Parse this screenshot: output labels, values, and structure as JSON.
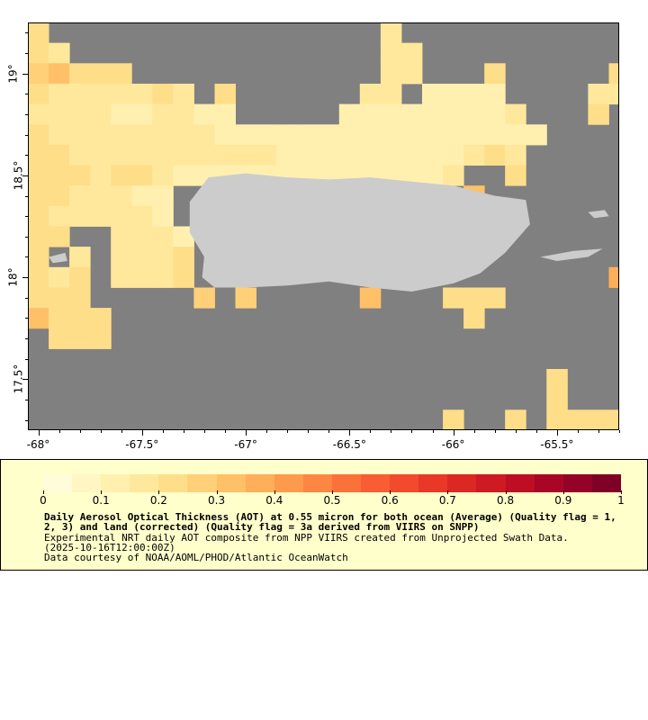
{
  "map": {
    "x_ticks": [
      "-68°",
      "-67.5°",
      "-67°",
      "-66.5°",
      "-66°",
      "-65.5°"
    ],
    "y_ticks": [
      "19°",
      "18.5°",
      "18°",
      "17.5°"
    ],
    "no_data_color": "#808080",
    "land_color": "#cccccc"
  },
  "legend": {
    "labels": [
      "0",
      "0.1",
      "0.2",
      "0.3",
      "0.4",
      "0.5",
      "0.6",
      "0.7",
      "0.8",
      "0.9",
      "1"
    ],
    "title": "Daily Aerosol Optical Thickness (AOT) at 0.55 micron for both ocean (Average) (Quality flag = 1, 2, 3) and land (corrected) (Quality flag = 3a derived from VIIRS on SNPP)",
    "line1": "Experimental NRT daily AOT composite from NPP VIIRS created from Unprojected Swath Data.",
    "line2": "(2025-10-16T12:00:00Z)",
    "line3": "Data courtesy of NOAA/AOML/PHOD/Atlantic OceanWatch",
    "colors": [
      "#fffcd9",
      "#fff6c4",
      "#fff0b0",
      "#ffe89c",
      "#ffde89",
      "#ffd078",
      "#ffc068",
      "#ffae5a",
      "#fe9a4d",
      "#fd8642",
      "#fb713a",
      "#f85d33",
      "#f24a2d",
      "#e93828",
      "#dc2823",
      "#ce1a22",
      "#bd0e24",
      "#a90626",
      "#940227",
      "#7f0026"
    ]
  },
  "chart_data": {
    "type": "heatmap",
    "title": "Daily Aerosol Optical Thickness (AOT) at 0.55 micron",
    "x_range": [
      -68.05,
      -65.2
    ],
    "y_range": [
      17.25,
      19.25
    ],
    "grid_step_deg": 0.1,
    "color_range": [
      0,
      1
    ],
    "cells": [
      [
        -68.0,
        19.2,
        0.22
      ],
      [
        -68.0,
        19.1,
        0.22
      ],
      [
        -67.9,
        19.1,
        0.18
      ],
      [
        -68.0,
        19.0,
        0.28
      ],
      [
        -67.9,
        19.0,
        0.3
      ],
      [
        -67.8,
        19.0,
        0.24
      ],
      [
        -67.7,
        19.0,
        0.22
      ],
      [
        -67.6,
        19.0,
        0.2
      ],
      [
        -68.0,
        18.9,
        0.2
      ],
      [
        -67.9,
        18.9,
        0.18
      ],
      [
        -67.8,
        18.9,
        0.16
      ],
      [
        -67.7,
        18.9,
        0.16
      ],
      [
        -67.6,
        18.9,
        0.15
      ],
      [
        -67.5,
        18.9,
        0.15
      ],
      [
        -67.4,
        18.9,
        0.22
      ],
      [
        -67.3,
        18.9,
        0.18
      ],
      [
        -67.1,
        18.9,
        0.2
      ],
      [
        -68.0,
        18.8,
        0.18
      ],
      [
        -67.9,
        18.8,
        0.16
      ],
      [
        -67.8,
        18.8,
        0.15
      ],
      [
        -67.7,
        18.8,
        0.15
      ],
      [
        -67.6,
        18.8,
        0.14
      ],
      [
        -67.5,
        18.8,
        0.14
      ],
      [
        -67.4,
        18.8,
        0.16
      ],
      [
        -67.3,
        18.8,
        0.16
      ],
      [
        -67.2,
        18.8,
        0.14
      ],
      [
        -67.1,
        18.8,
        0.14
      ],
      [
        -68.0,
        18.7,
        0.2
      ],
      [
        -67.9,
        18.7,
        0.18
      ],
      [
        -67.8,
        18.7,
        0.16
      ],
      [
        -67.7,
        18.7,
        0.18
      ],
      [
        -67.6,
        18.7,
        0.16
      ],
      [
        -67.5,
        18.7,
        0.16
      ],
      [
        -67.4,
        18.7,
        0.16
      ],
      [
        -67.3,
        18.7,
        0.15
      ],
      [
        -67.2,
        18.7,
        0.16
      ],
      [
        -67.1,
        18.7,
        0.14
      ],
      [
        -67.0,
        18.7,
        0.14
      ],
      [
        -66.9,
        18.7,
        0.14
      ],
      [
        -66.8,
        18.7,
        0.14
      ],
      [
        -66.7,
        18.7,
        0.12
      ],
      [
        -66.6,
        18.7,
        0.12
      ],
      [
        -66.5,
        18.7,
        0.12
      ],
      [
        -68.0,
        18.6,
        0.22
      ],
      [
        -67.9,
        18.6,
        0.2
      ],
      [
        -67.8,
        18.6,
        0.18
      ],
      [
        -67.7,
        18.6,
        0.16
      ],
      [
        -67.6,
        18.6,
        0.18
      ],
      [
        -67.5,
        18.6,
        0.18
      ],
      [
        -67.4,
        18.6,
        0.16
      ],
      [
        -67.3,
        18.6,
        0.16
      ],
      [
        -67.2,
        18.6,
        0.18
      ],
      [
        -67.1,
        18.6,
        0.18
      ],
      [
        -67.0,
        18.6,
        0.16
      ],
      [
        -66.9,
        18.6,
        0.15
      ],
      [
        -66.8,
        18.6,
        0.14
      ],
      [
        -66.7,
        18.6,
        0.13
      ],
      [
        -66.6,
        18.6,
        0.13
      ],
      [
        -66.5,
        18.6,
        0.12
      ],
      [
        -66.4,
        18.6,
        0.12
      ],
      [
        -66.3,
        18.6,
        0.13
      ],
      [
        -66.2,
        18.6,
        0.14
      ],
      [
        -68.0,
        18.5,
        0.22
      ],
      [
        -67.9,
        18.5,
        0.2
      ],
      [
        -67.8,
        18.5,
        0.2
      ],
      [
        -67.7,
        18.5,
        0.18
      ],
      [
        -67.6,
        18.5,
        0.2
      ],
      [
        -67.5,
        18.5,
        0.2
      ],
      [
        -67.4,
        18.5,
        0.16
      ],
      [
        -67.3,
        18.5,
        0.14
      ],
      [
        -67.2,
        18.5,
        0.14
      ],
      [
        -67.1,
        18.5,
        0.14
      ],
      [
        -67.0,
        18.5,
        0.13
      ],
      [
        -66.9,
        18.5,
        0.12
      ],
      [
        -66.8,
        18.5,
        0.1
      ],
      [
        -66.7,
        18.5,
        0.1
      ],
      [
        -66.6,
        18.5,
        0.1
      ],
      [
        -66.5,
        18.5,
        0.1
      ],
      [
        -66.4,
        18.5,
        0.1
      ],
      [
        -66.3,
        18.5,
        0.12
      ],
      [
        -66.2,
        18.5,
        0.14
      ],
      [
        -66.1,
        18.5,
        0.14
      ],
      [
        -68.0,
        18.4,
        0.2
      ],
      [
        -67.9,
        18.4,
        0.2
      ],
      [
        -67.8,
        18.4,
        0.18
      ],
      [
        -67.7,
        18.4,
        0.16
      ],
      [
        -67.6,
        18.4,
        0.16
      ],
      [
        -67.5,
        18.4,
        0.14
      ],
      [
        -67.4,
        18.4,
        0.14
      ],
      [
        -68.0,
        18.3,
        0.22
      ],
      [
        -67.9,
        18.3,
        0.18
      ],
      [
        -67.8,
        18.3,
        0.16
      ],
      [
        -67.7,
        18.3,
        0.16
      ],
      [
        -67.6,
        18.3,
        0.16
      ],
      [
        -67.5,
        18.3,
        0.15
      ],
      [
        -67.4,
        18.3,
        0.14
      ],
      [
        -68.0,
        18.2,
        0.2
      ],
      [
        -67.9,
        18.2,
        0.2
      ],
      [
        -67.6,
        18.2,
        0.18
      ],
      [
        -67.5,
        18.2,
        0.18
      ],
      [
        -67.4,
        18.2,
        0.16
      ],
      [
        -67.3,
        18.2,
        0.14
      ],
      [
        -68.0,
        18.1,
        0.2
      ],
      [
        -67.8,
        18.1,
        0.18
      ],
      [
        -67.6,
        18.1,
        0.16
      ],
      [
        -67.5,
        18.1,
        0.18
      ],
      [
        -67.4,
        18.1,
        0.16
      ],
      [
        -67.3,
        18.1,
        0.2
      ],
      [
        -68.0,
        18.0,
        0.2
      ],
      [
        -67.9,
        18.0,
        0.18
      ],
      [
        -67.8,
        18.0,
        0.2
      ],
      [
        -67.6,
        18.0,
        0.18
      ],
      [
        -67.5,
        18.0,
        0.16
      ],
      [
        -67.4,
        18.0,
        0.18
      ],
      [
        -67.3,
        18.0,
        0.2
      ],
      [
        -68.0,
        17.9,
        0.24
      ],
      [
        -67.9,
        17.9,
        0.2
      ],
      [
        -67.8,
        17.9,
        0.22
      ],
      [
        -67.2,
        17.9,
        0.28
      ],
      [
        -67.0,
        17.9,
        0.28
      ],
      [
        -66.4,
        17.9,
        0.3
      ],
      [
        -66.0,
        17.9,
        0.22
      ],
      [
        -65.9,
        17.9,
        0.24
      ],
      [
        -65.8,
        17.9,
        0.24
      ],
      [
        -68.0,
        17.8,
        0.3
      ],
      [
        -67.9,
        17.8,
        0.2
      ],
      [
        -67.8,
        17.8,
        0.22
      ],
      [
        -67.7,
        17.8,
        0.22
      ],
      [
        -65.9,
        17.8,
        0.24
      ],
      [
        -67.9,
        17.7,
        0.22
      ],
      [
        -67.8,
        17.7,
        0.22
      ],
      [
        -67.7,
        17.7,
        0.22
      ],
      [
        -65.5,
        17.5,
        0.24
      ],
      [
        -65.5,
        17.4,
        0.24
      ],
      [
        -66.0,
        17.3,
        0.22
      ],
      [
        -65.7,
        17.3,
        0.22
      ],
      [
        -65.5,
        17.3,
        0.2
      ],
      [
        -65.4,
        17.3,
        0.2
      ],
      [
        -65.3,
        17.3,
        0.2
      ],
      [
        -65.2,
        17.3,
        0.24
      ],
      [
        -66.3,
        19.2,
        0.18
      ],
      [
        -66.3,
        19.1,
        0.18
      ],
      [
        -66.2,
        19.1,
        0.16
      ],
      [
        -66.3,
        19.0,
        0.18
      ],
      [
        -66.2,
        19.0,
        0.16
      ],
      [
        -65.8,
        19.0,
        0.2
      ],
      [
        -65.2,
        19.0,
        0.22
      ],
      [
        -66.4,
        18.9,
        0.16
      ],
      [
        -66.3,
        18.9,
        0.15
      ],
      [
        -66.1,
        18.9,
        0.14
      ],
      [
        -66.0,
        18.9,
        0.14
      ],
      [
        -65.9,
        18.9,
        0.14
      ],
      [
        -65.8,
        18.9,
        0.14
      ],
      [
        -65.3,
        18.9,
        0.18
      ],
      [
        -65.2,
        18.9,
        0.16
      ],
      [
        -66.5,
        18.8,
        0.14
      ],
      [
        -66.4,
        18.8,
        0.14
      ],
      [
        -66.3,
        18.8,
        0.14
      ],
      [
        -66.2,
        18.8,
        0.14
      ],
      [
        -66.1,
        18.8,
        0.14
      ],
      [
        -66.0,
        18.8,
        0.14
      ],
      [
        -65.9,
        18.8,
        0.14
      ],
      [
        -65.8,
        18.8,
        0.14
      ],
      [
        -65.7,
        18.8,
        0.16
      ],
      [
        -65.3,
        18.8,
        0.2
      ],
      [
        -66.4,
        18.7,
        0.12
      ],
      [
        -66.3,
        18.7,
        0.12
      ],
      [
        -66.2,
        18.7,
        0.12
      ],
      [
        -66.1,
        18.7,
        0.12
      ],
      [
        -66.0,
        18.7,
        0.12
      ],
      [
        -65.9,
        18.7,
        0.12
      ],
      [
        -65.8,
        18.7,
        0.14
      ],
      [
        -65.7,
        18.7,
        0.14
      ],
      [
        -65.6,
        18.7,
        0.14
      ],
      [
        -66.1,
        18.6,
        0.12
      ],
      [
        -66.0,
        18.6,
        0.12
      ],
      [
        -65.9,
        18.6,
        0.16
      ],
      [
        -65.8,
        18.6,
        0.22
      ],
      [
        -65.7,
        18.6,
        0.18
      ],
      [
        -66.0,
        18.5,
        0.16
      ],
      [
        -65.7,
        18.5,
        0.22
      ],
      [
        -65.9,
        18.4,
        0.3
      ],
      [
        -65.2,
        18.0,
        0.38
      ]
    ]
  }
}
